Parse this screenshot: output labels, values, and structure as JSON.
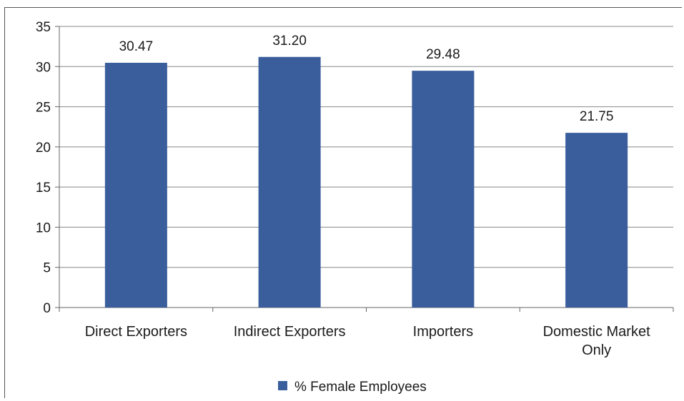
{
  "chart_data": {
    "type": "bar",
    "categories": [
      "Direct Exporters",
      "Indirect Exporters",
      "Importers",
      "Domestic Market Only"
    ],
    "category_lines": [
      [
        "Direct Exporters"
      ],
      [
        "Indirect Exporters"
      ],
      [
        "Importers"
      ],
      [
        "Domestic Market",
        "Only"
      ]
    ],
    "series": [
      {
        "name": "% Female Employees",
        "values": [
          30.47,
          31.2,
          29.48,
          21.75
        ],
        "color": "#3A5E9C"
      }
    ],
    "data_labels": [
      "30.47",
      "31.20",
      "29.48",
      "21.75"
    ],
    "ylim": [
      0,
      35
    ],
    "yticks": [
      0,
      5,
      10,
      15,
      20,
      25,
      30,
      35
    ],
    "grid": true,
    "legend_position": "bottom-center",
    "gridline_color": "#888888",
    "axis_color": "#666666"
  }
}
